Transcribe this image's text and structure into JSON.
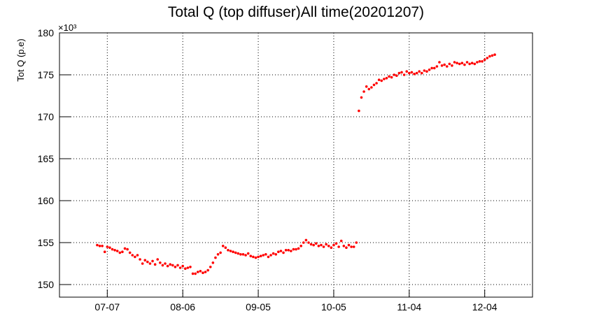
{
  "chart_data": {
    "type": "scatter",
    "title": "Total Q (top diffuser)All time(20201207)",
    "y_label": "Tot Q (p.e)",
    "y_multiplier": "×10³",
    "color": "#ff0000",
    "grid": true,
    "xlim": [
      "06-18",
      "12-23"
    ],
    "xticks": [
      "07-07",
      "08-06",
      "09-05",
      "10-05",
      "11-04",
      "12-04"
    ],
    "ylim": [
      148.5,
      180
    ],
    "yticks": [
      150,
      155,
      160,
      165,
      170,
      175,
      180
    ],
    "x": [
      "07-03",
      "07-04",
      "07-05",
      "07-06",
      "07-07",
      "07-08",
      "07-09",
      "07-10",
      "07-11",
      "07-12",
      "07-13",
      "07-14",
      "07-15",
      "07-16",
      "07-17",
      "07-18",
      "07-19",
      "07-20",
      "07-21",
      "07-22",
      "07-23",
      "07-24",
      "07-25",
      "07-26",
      "07-27",
      "07-28",
      "07-29",
      "07-30",
      "07-31",
      "08-01",
      "08-02",
      "08-03",
      "08-04",
      "08-05",
      "08-06",
      "08-07",
      "08-08",
      "08-09",
      "08-10",
      "08-11",
      "08-12",
      "08-13",
      "08-14",
      "08-15",
      "08-16",
      "08-17",
      "08-18",
      "08-19",
      "08-20",
      "08-21",
      "08-22",
      "08-23",
      "08-24",
      "08-25",
      "08-26",
      "08-27",
      "08-28",
      "08-29",
      "08-30",
      "08-31",
      "09-01",
      "09-02",
      "09-03",
      "09-04",
      "09-05",
      "09-06",
      "09-07",
      "09-08",
      "09-09",
      "09-10",
      "09-11",
      "09-12",
      "09-13",
      "09-14",
      "09-15",
      "09-16",
      "09-17",
      "09-18",
      "09-19",
      "09-20",
      "09-21",
      "09-22",
      "09-23",
      "09-24",
      "09-25",
      "09-26",
      "09-27",
      "09-28",
      "09-29",
      "09-30",
      "10-01",
      "10-02",
      "10-03",
      "10-04",
      "10-05",
      "10-06",
      "10-07",
      "10-08",
      "10-09",
      "10-10",
      "10-11",
      "10-12",
      "10-13",
      "10-14",
      "10-15",
      "10-16",
      "10-17",
      "10-18",
      "10-19",
      "10-20",
      "10-21",
      "10-22",
      "10-23",
      "10-24",
      "10-25",
      "10-26",
      "10-27",
      "10-28",
      "10-29",
      "10-30",
      "10-31",
      "11-01",
      "11-02",
      "11-03",
      "11-04",
      "11-05",
      "11-06",
      "11-07",
      "11-08",
      "11-09",
      "11-10",
      "11-11",
      "11-12",
      "11-13",
      "11-14",
      "11-15",
      "11-16",
      "11-17",
      "11-18",
      "11-19",
      "11-20",
      "11-21",
      "11-22",
      "11-23",
      "11-24",
      "11-25",
      "11-26",
      "11-27",
      "11-28",
      "11-29",
      "11-30",
      "12-01",
      "12-02",
      "12-03",
      "12-04",
      "12-05",
      "12-06",
      "12-07",
      "12-08"
    ],
    "values": [
      154.7,
      154.6,
      154.6,
      153.9,
      154.5,
      154.4,
      154.2,
      154.1,
      154.0,
      153.8,
      153.9,
      154.3,
      154.2,
      153.8,
      153.5,
      153.3,
      153.5,
      153.0,
      152.5,
      152.9,
      152.7,
      152.5,
      152.8,
      152.4,
      153.0,
      152.6,
      152.3,
      152.5,
      152.2,
      152.4,
      152.3,
      152.1,
      152.3,
      152.0,
      152.2,
      151.9,
      152.0,
      152.1,
      151.3,
      151.3,
      151.5,
      151.6,
      151.4,
      151.5,
      151.7,
      152.1,
      152.6,
      153.2,
      153.6,
      153.8,
      154.6,
      154.4,
      154.1,
      154.0,
      153.9,
      153.8,
      153.7,
      153.6,
      153.6,
      153.5,
      153.7,
      153.4,
      153.3,
      153.2,
      153.3,
      153.4,
      153.5,
      153.6,
      153.3,
      153.5,
      153.7,
      153.6,
      153.9,
      154.0,
      153.8,
      154.1,
      154.1,
      154.0,
      154.2,
      154.2,
      154.3,
      154.6,
      155.0,
      155.3,
      155.0,
      154.8,
      154.7,
      154.9,
      154.6,
      154.7,
      154.5,
      154.8,
      154.6,
      154.4,
      154.7,
      154.9,
      154.5,
      155.2,
      154.6,
      154.4,
      154.7,
      154.5,
      154.5,
      155.0,
      170.7,
      172.3,
      173.0,
      173.6,
      173.3,
      173.5,
      173.8,
      174.0,
      174.4,
      174.3,
      174.5,
      174.6,
      174.8,
      174.7,
      175.0,
      174.9,
      175.2,
      175.3,
      175.0,
      175.4,
      175.2,
      175.3,
      175.1,
      175.2,
      175.4,
      175.2,
      175.5,
      175.4,
      175.6,
      175.8,
      175.8,
      176.0,
      176.5,
      176.1,
      176.2,
      176.0,
      176.3,
      176.1,
      176.5,
      176.4,
      176.3,
      176.4,
      176.2,
      176.5,
      176.3,
      176.4,
      176.3,
      176.5,
      176.6,
      176.6,
      176.8,
      177.0,
      177.2,
      177.3,
      177.4
    ]
  }
}
